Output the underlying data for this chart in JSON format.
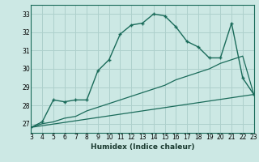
{
  "xlabel": "Humidex (Indice chaleur)",
  "ylabel": "",
  "bg_color": "#cce8e4",
  "line_color": "#1a6b5a",
  "grid_color": "#aed0cc",
  "xlim": [
    3,
    23
  ],
  "ylim": [
    26.5,
    33.5
  ],
  "xticks": [
    3,
    4,
    5,
    6,
    7,
    8,
    9,
    10,
    11,
    12,
    13,
    14,
    15,
    16,
    17,
    18,
    19,
    20,
    21,
    22,
    23
  ],
  "yticks": [
    27,
    28,
    29,
    30,
    31,
    32,
    33
  ],
  "main_x": [
    3,
    4,
    5,
    6,
    7,
    8,
    9,
    10,
    11,
    12,
    13,
    14,
    15,
    16,
    17,
    18,
    19,
    20,
    21,
    22,
    23
  ],
  "main_y": [
    26.8,
    27.1,
    28.3,
    28.2,
    28.3,
    28.3,
    29.9,
    30.5,
    31.9,
    32.4,
    32.5,
    33.0,
    32.9,
    32.3,
    31.5,
    31.2,
    30.6,
    30.6,
    32.5,
    29.5,
    28.6
  ],
  "line2_x": [
    3,
    4,
    5,
    6,
    7,
    8,
    9,
    10,
    11,
    12,
    13,
    14,
    15,
    16,
    17,
    18,
    19,
    20,
    21,
    22,
    23
  ],
  "line2_y": [
    26.8,
    27.0,
    27.1,
    27.3,
    27.4,
    27.7,
    27.9,
    28.1,
    28.3,
    28.5,
    28.7,
    28.9,
    29.1,
    29.4,
    29.6,
    29.8,
    30.0,
    30.3,
    30.5,
    30.7,
    28.6
  ],
  "line3_x": [
    3,
    23
  ],
  "line3_y": [
    26.8,
    28.6
  ]
}
